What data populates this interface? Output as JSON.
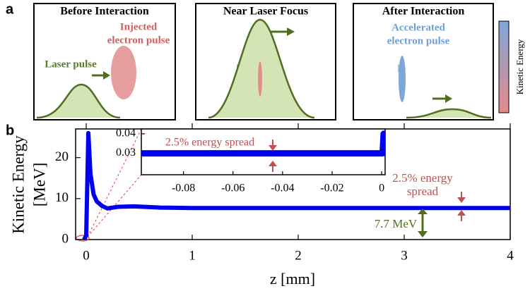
{
  "panel_a": {
    "label": "a",
    "boxes": [
      {
        "title": "Before Interaction",
        "texts": [
          "Injected",
          "electron pulse",
          "Laser pulse"
        ]
      },
      {
        "title": "Near Laser Focus"
      },
      {
        "title": "After Interaction",
        "texts": [
          "Accelerated",
          "electron pulse"
        ]
      }
    ],
    "colorbar_label": "Kinetic Energy"
  },
  "panel_b": {
    "label": "b"
  },
  "chart_data": [
    {
      "type": "line",
      "xlabel": "z [mm]",
      "ylabel": [
        "Kinetic Energy",
        "[MeV]"
      ],
      "x": [
        -0.02,
        0,
        0.02,
        0.04,
        0.07,
        0.1,
        0.15,
        0.2,
        0.3,
        0.45,
        0.7,
        1,
        2,
        3,
        4
      ],
      "series": [
        {
          "color": "#0000ee",
          "values": [
            0,
            1,
            26,
            16,
            11,
            9.3,
            8.2,
            7.6,
            8,
            8.1,
            7.8,
            7.7,
            7.7,
            7.7,
            7.7
          ]
        }
      ],
      "xlim": [
        -0.1,
        4
      ],
      "ylim": [
        0,
        27
      ],
      "xticks": [
        0,
        1,
        2,
        3,
        4
      ],
      "yticks": [
        0,
        10,
        20
      ],
      "annotations": {
        "spread": [
          "2.5% energy",
          "spread"
        ],
        "energy": "7.7 MeV"
      }
    },
    {
      "type": "line",
      "x": [
        -0.097,
        0.0004,
        0.0008,
        0.0012
      ],
      "series": [
        {
          "color": "#0000ee",
          "values": [
            0.03,
            0.03,
            0.04,
            0.03
          ]
        }
      ],
      "xlim": [
        -0.097,
        0.0014
      ],
      "ylim": [
        0.019,
        0.0425
      ],
      "xticks": [
        -0.08,
        -0.06,
        -0.04,
        -0.02,
        0
      ],
      "yticks": [
        0.03,
        0.04
      ],
      "annotations": {
        "spread": "2.5% energy spread"
      }
    }
  ]
}
